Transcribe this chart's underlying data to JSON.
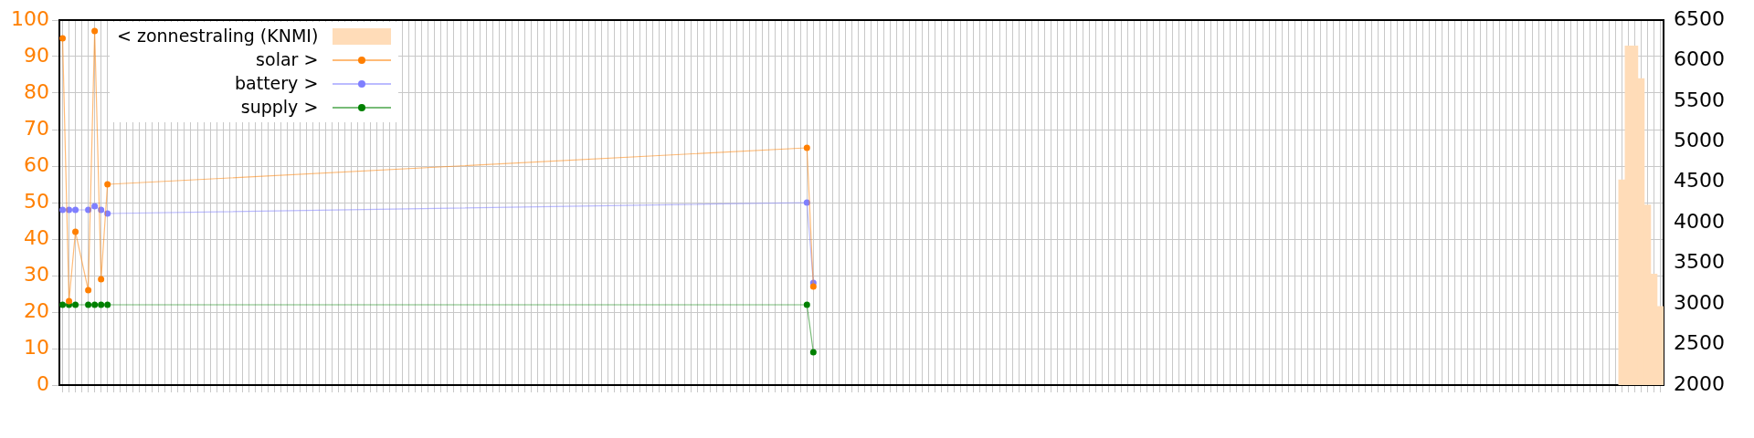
{
  "chart_data": {
    "type": "line",
    "categories": [
      null,
      null,
      null,
      null,
      null,
      null,
      null,
      null,
      null,
      null,
      null,
      null,
      null,
      null,
      null,
      null,
      null,
      null,
      null,
      null,
      null,
      null,
      null,
      null,
      null,
      null,
      null,
      null,
      null,
      null,
      null,
      null,
      null,
      null,
      null,
      null,
      null,
      null,
      null,
      null,
      null,
      null,
      null,
      null,
      null,
      null,
      null,
      null,
      null,
      null,
      null,
      null,
      null,
      null,
      null,
      null,
      null,
      null,
      null,
      null,
      null,
      null,
      null,
      null,
      null,
      null,
      null,
      null,
      null,
      null,
      null,
      null,
      null,
      null,
      null,
      null,
      null,
      null,
      null,
      null,
      null,
      null,
      null,
      null,
      null,
      null,
      null,
      null,
      null,
      null,
      null,
      null,
      null,
      null,
      null,
      null,
      null,
      null,
      null,
      null,
      null,
      null,
      null,
      null,
      null,
      null,
      null,
      null,
      null,
      null,
      null,
      null,
      null,
      null,
      null,
      null,
      null,
      null,
      null,
      null,
      null,
      null,
      null,
      null,
      null,
      null,
      null,
      null,
      null,
      null,
      null,
      null,
      null,
      null,
      null,
      null,
      null,
      null,
      null,
      null,
      null,
      null,
      null,
      null,
      null,
      null,
      null,
      null,
      null,
      null,
      null,
      null,
      null,
      null,
      null,
      null,
      null,
      null,
      null,
      null,
      null,
      null,
      null,
      null,
      null,
      null,
      null,
      null,
      null,
      null,
      null,
      null,
      null,
      null,
      null,
      null,
      null,
      null,
      null,
      null,
      null,
      null,
      null,
      null,
      null,
      null,
      null,
      null,
      null,
      null,
      null,
      null,
      null,
      null,
      null,
      null,
      null,
      null,
      null,
      null,
      null,
      null,
      null,
      null,
      null,
      null,
      null,
      null,
      null,
      null,
      null,
      null,
      null,
      null,
      null,
      null,
      null,
      null,
      null,
      null,
      null,
      null,
      null,
      null,
      null,
      null,
      null,
      null,
      null,
      null,
      null,
      null,
      null,
      null,
      null,
      null,
      null,
      null,
      null,
      null,
      null,
      null,
      null,
      null,
      null,
      null,
      null,
      null,
      null,
      null
    ],
    "series": [
      {
        "name": "< zonnestraling (KNMI)",
        "type": "bar",
        "axis": "y2",
        "color": "#ffdcb8",
        "values": [
          null,
          null,
          null,
          null,
          null,
          null,
          null,
          null,
          null,
          null,
          null,
          null,
          null,
          null,
          null,
          null,
          null,
          null,
          null,
          null,
          null,
          null,
          null,
          null,
          null,
          null,
          null,
          null,
          null,
          null,
          null,
          null,
          null,
          null,
          null,
          null,
          null,
          null,
          null,
          null,
          null,
          null,
          null,
          null,
          null,
          null,
          null,
          null,
          null,
          null,
          null,
          null,
          null,
          null,
          null,
          null,
          null,
          null,
          null,
          null,
          null,
          null,
          null,
          null,
          null,
          null,
          null,
          null,
          null,
          null,
          null,
          null,
          null,
          null,
          null,
          null,
          null,
          null,
          null,
          null,
          null,
          null,
          null,
          null,
          null,
          null,
          null,
          null,
          null,
          null,
          null,
          null,
          null,
          null,
          null,
          null,
          null,
          null,
          null,
          null,
          null,
          null,
          null,
          null,
          null,
          null,
          null,
          null,
          null,
          null,
          null,
          null,
          null,
          null,
          null,
          null,
          null,
          null,
          null,
          null,
          null,
          null,
          null,
          null,
          null,
          null,
          null,
          null,
          null,
          null,
          null,
          null,
          null,
          null,
          null,
          null,
          null,
          null,
          null,
          null,
          null,
          null,
          null,
          null,
          null,
          null,
          null,
          null,
          null,
          null,
          null,
          null,
          null,
          null,
          null,
          null,
          null,
          null,
          null,
          null,
          null,
          null,
          null,
          null,
          null,
          null,
          null,
          null,
          null,
          null,
          null,
          null,
          null,
          null,
          null,
          null,
          null,
          null,
          null,
          null,
          null,
          null,
          null,
          null,
          null,
          null,
          null,
          null,
          null,
          null,
          null,
          null,
          null,
          null,
          null,
          null,
          null,
          null,
          null,
          null,
          null,
          null,
          null,
          null,
          null,
          null,
          null,
          null,
          null,
          null,
          null,
          null,
          null,
          null,
          null,
          null,
          null,
          null,
          null,
          null,
          null,
          null,
          null,
          null,
          null,
          null,
          null,
          null,
          null,
          null,
          null,
          null,
          null,
          null,
          null,
          null,
          null,
          null,
          null,
          null,
          null,
          null,
          null,
          4530,
          6180,
          6180,
          5780,
          4220,
          3370,
          2970
        ]
      },
      {
        "name": "solar >",
        "color": "#ff7f00",
        "values": [
          95,
          23,
          42,
          null,
          26,
          97,
          29,
          55,
          null,
          null,
          null,
          null,
          null,
          null,
          null,
          null,
          null,
          null,
          null,
          null,
          null,
          null,
          null,
          null,
          null,
          null,
          null,
          null,
          null,
          null,
          null,
          null,
          null,
          null,
          null,
          null,
          null,
          null,
          null,
          null,
          null,
          null,
          null,
          null,
          null,
          null,
          null,
          null,
          null,
          null,
          null,
          null,
          null,
          null,
          null,
          null,
          null,
          null,
          null,
          null,
          null,
          null,
          null,
          null,
          null,
          null,
          null,
          null,
          null,
          null,
          null,
          null,
          null,
          null,
          null,
          null,
          null,
          null,
          null,
          null,
          null,
          null,
          null,
          null,
          null,
          null,
          null,
          null,
          null,
          null,
          null,
          null,
          null,
          null,
          null,
          null,
          null,
          null,
          null,
          null,
          null,
          null,
          null,
          null,
          null,
          null,
          null,
          null,
          null,
          null,
          null,
          null,
          null,
          null,
          null,
          null,
          65,
          27,
          null,
          null,
          null,
          null,
          null,
          null,
          null,
          null,
          null,
          null,
          null,
          null,
          null,
          null,
          null,
          null,
          null,
          null,
          null,
          null,
          null,
          null,
          null,
          null,
          null,
          null,
          null,
          null,
          null,
          null,
          null,
          null,
          null,
          null,
          null,
          null,
          null,
          null,
          null,
          null,
          null,
          null,
          null,
          null,
          null,
          null,
          null,
          null,
          null,
          null,
          null,
          null,
          null,
          null,
          null,
          null,
          null,
          null,
          null,
          null,
          null,
          null,
          null,
          null,
          null,
          null,
          null,
          null,
          null,
          null,
          null,
          null,
          null,
          null,
          null,
          null,
          null,
          null,
          null,
          null,
          null,
          null,
          null,
          null,
          null,
          null,
          null,
          null,
          null,
          null,
          null,
          null,
          null,
          null,
          null,
          null,
          null,
          null,
          null,
          null,
          null,
          null,
          null,
          null,
          null,
          null,
          null,
          null,
          null,
          null,
          null,
          null,
          null,
          null,
          null,
          null,
          null,
          null,
          null,
          null,
          null,
          null,
          null,
          null,
          null,
          null,
          null,
          null,
          null,
          null,
          null,
          null
        ]
      },
      {
        "name": "battery >",
        "color": "#7f7fff",
        "values": [
          48,
          48,
          48,
          null,
          48,
          49,
          48,
          47,
          null,
          null,
          null,
          null,
          null,
          null,
          null,
          null,
          null,
          null,
          null,
          null,
          null,
          null,
          null,
          null,
          null,
          null,
          null,
          null,
          null,
          null,
          null,
          null,
          null,
          null,
          null,
          null,
          null,
          null,
          null,
          null,
          null,
          null,
          null,
          null,
          null,
          null,
          null,
          null,
          null,
          null,
          null,
          null,
          null,
          null,
          null,
          null,
          null,
          null,
          null,
          null,
          null,
          null,
          null,
          null,
          null,
          null,
          null,
          null,
          null,
          null,
          null,
          null,
          null,
          null,
          null,
          null,
          null,
          null,
          null,
          null,
          null,
          null,
          null,
          null,
          null,
          null,
          null,
          null,
          null,
          null,
          null,
          null,
          null,
          null,
          null,
          null,
          null,
          null,
          null,
          null,
          null,
          null,
          null,
          null,
          null,
          null,
          null,
          null,
          null,
          null,
          null,
          null,
          null,
          null,
          null,
          null,
          50,
          28,
          null,
          null,
          null,
          null,
          null,
          null,
          null,
          null,
          null,
          null,
          null,
          null,
          null,
          null,
          null,
          null,
          null,
          null,
          null,
          null,
          null,
          null,
          null,
          null,
          null,
          null,
          null,
          null,
          null,
          null,
          null,
          null,
          null,
          null,
          null,
          null,
          null,
          null,
          null,
          null,
          null,
          null,
          null,
          null,
          null,
          null,
          null,
          null,
          null,
          null,
          null,
          null,
          null,
          null,
          null,
          null,
          null,
          null,
          null,
          null,
          null,
          null,
          null,
          null,
          null,
          null,
          null,
          null,
          null,
          null,
          null,
          null,
          null,
          null,
          null,
          null,
          null,
          null,
          null,
          null,
          null,
          null,
          null,
          null,
          null,
          null,
          null,
          null,
          null,
          null,
          null,
          null,
          null,
          null,
          null,
          null,
          null,
          null,
          null,
          null,
          null,
          null,
          null,
          null,
          null,
          null,
          null,
          null,
          null,
          null,
          null,
          null,
          null,
          null,
          null,
          null,
          null,
          null,
          null,
          null,
          null,
          null,
          null,
          null,
          null,
          null,
          null,
          null,
          null,
          null,
          null,
          null
        ]
      },
      {
        "name": "supply >",
        "color": "#008000",
        "values": [
          22,
          22,
          22,
          null,
          22,
          22,
          22,
          22,
          null,
          null,
          null,
          null,
          null,
          null,
          null,
          null,
          null,
          null,
          null,
          null,
          null,
          null,
          null,
          null,
          null,
          null,
          null,
          null,
          null,
          null,
          null,
          null,
          null,
          null,
          null,
          null,
          null,
          null,
          null,
          null,
          null,
          null,
          null,
          null,
          null,
          null,
          null,
          null,
          null,
          null,
          null,
          null,
          null,
          null,
          null,
          null,
          null,
          null,
          null,
          null,
          null,
          null,
          null,
          null,
          null,
          null,
          null,
          null,
          null,
          null,
          null,
          null,
          null,
          null,
          null,
          null,
          null,
          null,
          null,
          null,
          null,
          null,
          null,
          null,
          null,
          null,
          null,
          null,
          null,
          null,
          null,
          null,
          null,
          null,
          null,
          null,
          null,
          null,
          null,
          null,
          null,
          null,
          null,
          null,
          null,
          null,
          null,
          null,
          null,
          null,
          null,
          null,
          null,
          null,
          null,
          null,
          22,
          9,
          null,
          null,
          null,
          null,
          null,
          null,
          null,
          null,
          null,
          null,
          null,
          null,
          null,
          null,
          null,
          null,
          null,
          null,
          null,
          null,
          null,
          null,
          null,
          null,
          null,
          null,
          null,
          null,
          null,
          null,
          null,
          null,
          null,
          null,
          null,
          null,
          null,
          null,
          null,
          null,
          null,
          null,
          null,
          null,
          null,
          null,
          null,
          null,
          null,
          null,
          null,
          null,
          null,
          null,
          null,
          null,
          null,
          null,
          null,
          null,
          null,
          null,
          null,
          null,
          null,
          null,
          null,
          null,
          null,
          null,
          null,
          null,
          null,
          null,
          null,
          null,
          null,
          null,
          null,
          null,
          null,
          null,
          null,
          null,
          null,
          null,
          null,
          null,
          null,
          null,
          null,
          null,
          null,
          null,
          null,
          null,
          null,
          null,
          null,
          null,
          null,
          null,
          null,
          null,
          null,
          null,
          null,
          null,
          null,
          null,
          null,
          null,
          null,
          null,
          null,
          null,
          null,
          null,
          null,
          null,
          null,
          null,
          null,
          null,
          null,
          null,
          null,
          null,
          null,
          null,
          null,
          null
        ]
      }
    ],
    "ylim": [
      0,
      100
    ],
    "yticks": [
      0,
      10,
      20,
      30,
      40,
      50,
      60,
      70,
      80,
      90,
      100
    ],
    "y2lim": [
      2000,
      6500
    ],
    "y2ticks": [
      2000,
      2500,
      3000,
      3500,
      4000,
      4500,
      5000,
      5500,
      6000,
      6500
    ],
    "grid": true,
    "legend": "top left",
    "marker": "circle"
  }
}
